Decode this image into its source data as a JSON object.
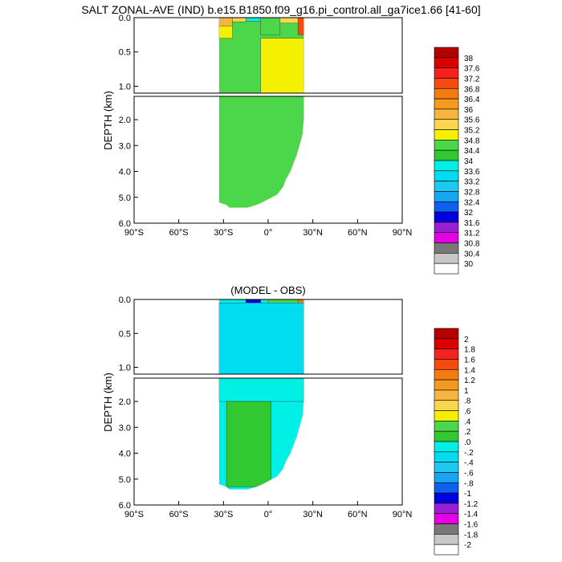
{
  "title": "SALT ZONAL-AVE (IND) b.e15.B1850.f09_g16.pi_control.all_ga7ice1.66 [41-60]",
  "chart_data": [
    {
      "type": "heatmap",
      "title": "",
      "ylabel": "DEPTH (km)",
      "x_ticks": [
        "90°S",
        "60°S",
        "30°S",
        "0°",
        "30°N",
        "60°N",
        "90°N"
      ],
      "x_range": [
        -90,
        90
      ],
      "y_top_ticks": [
        "0.0",
        "0.5",
        "1.0"
      ],
      "y_bottom_ticks": [
        "2.0",
        "3.0",
        "4.0",
        "5.0",
        "6.0"
      ],
      "y_range_km": [
        0,
        6
      ],
      "colorbar_labels": [
        "38",
        "37.6",
        "37.2",
        "36.8",
        "36.4",
        "36",
        "35.6",
        "35.2",
        "34.8",
        "34.4",
        "34",
        "33.6",
        "33.2",
        "32.8",
        "32.4",
        "32",
        "31.6",
        "31.2",
        "30.8",
        "30.4",
        "30"
      ],
      "colorbar_colors": [
        "#b40000",
        "#dc0000",
        "#f52020",
        "#f54a10",
        "#f57a10",
        "#f59a20",
        "#f7b440",
        "#fad64e",
        "#f5f000",
        "#4cd64a",
        "#32c832",
        "#00f0e6",
        "#00dcf0",
        "#1ec8f0",
        "#16a5f0",
        "#1060f0",
        "#0000e0",
        "#9b1fd2",
        "#e600e6",
        "#787878",
        "#c8c8c8",
        "#ffffff"
      ],
      "regions": [
        {
          "lat": [
            -33,
            -24
          ],
          "depth": [
            0,
            0.12
          ],
          "value": 35.6
        },
        {
          "lat": [
            -24,
            -15
          ],
          "depth": [
            0,
            0.06
          ],
          "value": 35.2
        },
        {
          "lat": [
            -15,
            -5
          ],
          "depth": [
            0,
            0.05
          ],
          "value": 33.6
        },
        {
          "lat": [
            -5,
            8
          ],
          "depth": [
            0,
            0.25
          ],
          "value": 34.4
        },
        {
          "lat": [
            8,
            24
          ],
          "depth": [
            0,
            0.08
          ],
          "value": 35.2
        },
        {
          "lat": [
            20,
            25
          ],
          "depth": [
            0,
            0.25
          ],
          "value": 36.8
        },
        {
          "lat": [
            -33,
            -24
          ],
          "depth": [
            0.12,
            0.3
          ],
          "value": 34.8
        },
        {
          "lat": [
            -5,
            24
          ],
          "depth": [
            0.3,
            1.1
          ],
          "value": 34.8
        }
      ]
    },
    {
      "type": "heatmap",
      "title": "(MODEL - OBS)",
      "ylabel": "DEPTH (km)",
      "x_ticks": [
        "90°S",
        "60°S",
        "30°S",
        "0°",
        "30°N",
        "60°N",
        "90°N"
      ],
      "x_range": [
        -90,
        90
      ],
      "y_top_ticks": [
        "0.0",
        "0.5",
        "1.0"
      ],
      "y_bottom_ticks": [
        "2.0",
        "3.0",
        "4.0",
        "5.0",
        "6.0"
      ],
      "y_range_km": [
        0,
        6
      ],
      "colorbar_labels": [
        "2",
        "1.8",
        "1.6",
        "1.4",
        "1.2",
        "1",
        ".8",
        ".6",
        ".4",
        ".2",
        ".0",
        "-.2",
        "-.4",
        "-.6",
        "-.8",
        "-1",
        "-1.2",
        "-1.4",
        "-1.6",
        "-1.8",
        "-2"
      ],
      "colorbar_colors": [
        "#b40000",
        "#dc0000",
        "#f52020",
        "#f54a10",
        "#f57a10",
        "#f59a20",
        "#f7b440",
        "#fad64e",
        "#f5f000",
        "#4cd64a",
        "#32c832",
        "#00f0e6",
        "#00dcf0",
        "#1ec8f0",
        "#16a5f0",
        "#1060f0",
        "#0000e0",
        "#9b1fd2",
        "#e600e6",
        "#787878",
        "#c8c8c8",
        "#ffffff"
      ],
      "regions": [
        {
          "lat": [
            -15,
            -5
          ],
          "depth": [
            0,
            0.07
          ],
          "value": -1.2
        },
        {
          "lat": [
            0,
            20
          ],
          "depth": [
            0,
            0.1
          ],
          "value": 0.2
        },
        {
          "lat": [
            20,
            25
          ],
          "depth": [
            0,
            0.15
          ],
          "value": 1.2
        },
        {
          "lat": [
            -33,
            24
          ],
          "depth": [
            0.05,
            1.1
          ],
          "value": -0.4
        },
        {
          "lat": [
            -33,
            24
          ],
          "depth": [
            1.1,
            2.0
          ],
          "value": -0.2
        },
        {
          "lat": [
            -28,
            2
          ],
          "depth": [
            2.0,
            5.3
          ],
          "value": 0.0
        }
      ]
    }
  ]
}
